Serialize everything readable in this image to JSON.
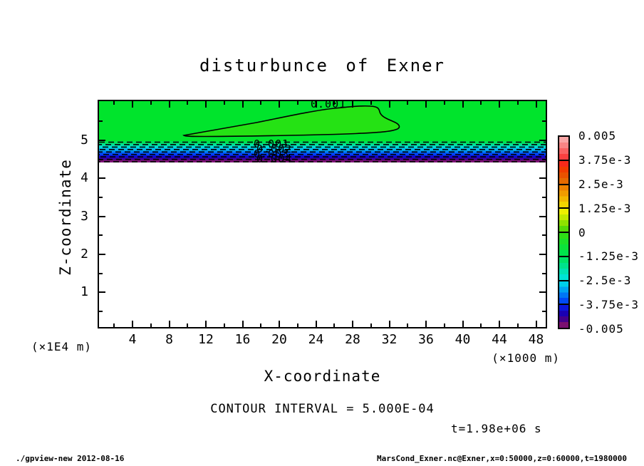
{
  "title": "disturbunce of Exner",
  "axes": {
    "x": {
      "title": "X-coordinate",
      "tick_labels": [
        "4",
        "8",
        "12",
        "16",
        "20",
        "24",
        "28",
        "32",
        "36",
        "40",
        "44",
        "48"
      ],
      "unit_right": "(×1000 m)"
    },
    "y": {
      "title": "Z-coordinate",
      "tick_labels": [
        "5",
        "4",
        "3",
        "2",
        "1"
      ],
      "unit_left": "(×1E4 m)"
    }
  },
  "contour": {
    "interval_text": "CONTOUR INTERVAL = 5.000E-04",
    "top_label": "0.001",
    "stacked_labels": [
      "0.001",
      "0.002",
      "0.003",
      "0.004"
    ]
  },
  "colorbar": {
    "labels": [
      "0.005",
      "3.75e-3",
      "2.5e-3",
      "1.25e-3",
      "0",
      "-1.25e-3",
      "-2.5e-3",
      "-3.75e-3",
      "-0.005"
    ]
  },
  "annotations": {
    "time": "t=1.98e+06 s"
  },
  "footer": {
    "left": "./gpview-new  2012-08-16",
    "right": "MarsCond_Exner.nc@Exner,x=0:50000,z=0:60000,t=1980000"
  },
  "colors": {
    "background": "#ffffff",
    "frame": "#000000",
    "green_region": "#00e42c",
    "contour_lens_fill": "#25e214",
    "gradient_band_steps": [
      "#00e154",
      "#00e09a",
      "#00dcd2",
      "#00b4ea",
      "#0080f4",
      "#0044f4",
      "#0f0ad2",
      "#3b009c",
      "#7a1173"
    ],
    "colorbar_blocks": [
      [
        "#f9a6a6",
        "#f98585",
        "#f96262",
        "#fa4040"
      ],
      [
        "#f92a1a",
        "#f23c00",
        "#ea5200",
        "#e66a00"
      ],
      [
        "#ee8200",
        "#f09c00",
        "#f2b800",
        "#f2d400"
      ],
      [
        "#eef000",
        "#c2ea00",
        "#8ee200",
        "#55da08"
      ],
      [
        "#2ede16",
        "#1ce028",
        "#0ce23a",
        "#00e44c"
      ],
      [
        "#00e266",
        "#00e28c",
        "#00e2b2",
        "#00e2d4"
      ],
      [
        "#00cfe8",
        "#00a4f0",
        "#0076f4",
        "#004af6"
      ],
      [
        "#0b16dd",
        "#1a00b4",
        "#44008c",
        "#7a0f70"
      ]
    ]
  },
  "chart_data": {
    "type": "heatmap",
    "title": "disturbunce of Exner",
    "xlabel": "X-coordinate (×1000 m)",
    "ylabel": "Z-coordinate (×1E4 m)",
    "xlim": [
      0,
      50
    ],
    "ylim": [
      0,
      6
    ],
    "x_ticks": [
      4,
      8,
      12,
      16,
      20,
      24,
      28,
      32,
      36,
      40,
      44,
      48
    ],
    "y_ticks": [
      1,
      2,
      3,
      4,
      5
    ],
    "contour_interval": 0.0005,
    "colorbar_levels": [
      0.005,
      0.00375,
      0.0025,
      0.00125,
      0,
      -0.00125,
      -0.0025,
      -0.00375,
      -0.005
    ],
    "time_seconds": 1980000,
    "legend_position": "right colorbar",
    "grid": false,
    "field_regions": [
      {
        "z_range_1e4m": [
          5.0,
          6.0
        ],
        "x_range_1000m": [
          0,
          50
        ],
        "value": "near 0, slightly negative (uniform bright green)"
      },
      {
        "z_range_1e4m": [
          5.1,
          5.9
        ],
        "x_range_1000m": [
          10,
          33
        ],
        "value": "> +0.001 closed solid contour lens, slightly lighter green fill"
      },
      {
        "z_range_1e4m": [
          4.4,
          5.0
        ],
        "x_range_1000m": [
          0,
          50
        ],
        "value": "sharp drop 0 to -0.005 (green→cyan→blue→purple) with ~9 dashed negative contour lines"
      },
      {
        "z_range_1e4m": [
          0,
          4.4
        ],
        "x_range_1000m": [
          0,
          50
        ],
        "value": "no shading (white, below color range)"
      }
    ]
  }
}
